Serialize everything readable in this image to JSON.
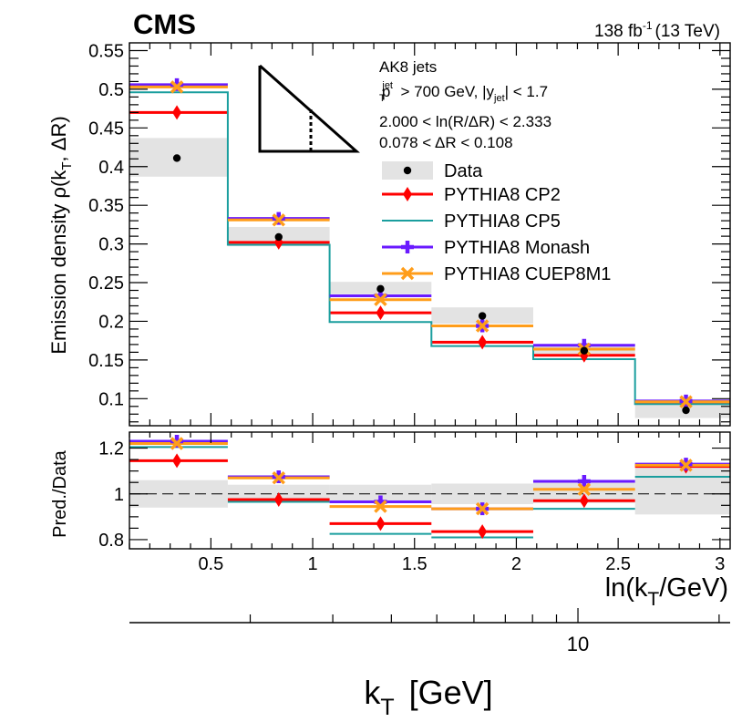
{
  "header": {
    "experiment": "CMS",
    "lumi": "138 fb",
    "lumi_sup": "-1",
    "energy": "(13 TeV)"
  },
  "legend_info": {
    "line1": "AK8 jets",
    "line2": {
      "p": "p",
      "sup": "jet",
      "sub": "T",
      "mid": " > 700 GeV, |y",
      "sub2": "jet",
      "end": "| < 1.7"
    },
    "line3": "2.000 < ln(R/ΔR) < 2.333",
    "line4": "0.078 < ΔR < 0.108"
  },
  "colors": {
    "data": "#000000",
    "cp2": "#ff0000",
    "cp5": "#1a9e9e",
    "monash": "#6a1aff",
    "cuep8m1": "#ff9d1a",
    "band": "#e3e3e3"
  },
  "chart_data": [
    {
      "type": "line",
      "name": "main",
      "ylabel": "Emission density ρ(k_T, ΔR)",
      "ylabel_parts": {
        "main": "Emission density ρ(k",
        "sub": "T",
        "end": ", ΔR)"
      },
      "xlim": [
        0.1,
        3.05
      ],
      "ylim": [
        0.065,
        0.56
      ],
      "yticks": [
        0.1,
        0.15,
        0.2,
        0.25,
        0.3,
        0.35,
        0.4,
        0.45,
        0.5,
        0.55
      ],
      "ytick_labels": [
        "0.1",
        "0.15",
        "0.2",
        "0.25",
        "0.3",
        "0.35",
        "0.4",
        "0.45",
        "0.5",
        "0.55"
      ],
      "bin_edges": [
        0.1,
        0.583,
        1.083,
        1.583,
        2.083,
        2.583,
        3.05
      ],
      "bin_centers": [
        0.333,
        0.833,
        1.333,
        1.833,
        2.333,
        2.833
      ],
      "series": [
        {
          "name": "Data",
          "key": "data",
          "values": [
            0.411,
            0.309,
            0.242,
            0.207,
            0.162,
            0.085
          ],
          "band_low": [
            0.387,
            0.297,
            0.235,
            0.197,
            0.156,
            0.075
          ],
          "band_high": [
            0.437,
            0.322,
            0.251,
            0.218,
            0.17,
            0.095
          ]
        },
        {
          "name": "PYTHIA8 CP2",
          "key": "cp2",
          "values": [
            0.47,
            0.302,
            0.211,
            0.173,
            0.156,
            0.095
          ]
        },
        {
          "name": "PYTHIA8 CP5",
          "key": "cp5",
          "values": [
            0.496,
            0.299,
            0.199,
            0.168,
            0.151,
            0.093
          ]
        },
        {
          "name": "PYTHIA8 Monash",
          "key": "monash",
          "values": [
            0.506,
            0.333,
            0.233,
            0.194,
            0.169,
            0.097
          ]
        },
        {
          "name": "PYTHIA8 CUEP8M1",
          "key": "cuep8m1",
          "values": [
            0.503,
            0.331,
            0.228,
            0.194,
            0.164,
            0.096
          ]
        }
      ]
    },
    {
      "type": "line",
      "name": "ratio",
      "ylabel": "Pred./Data",
      "xlabel": "ln(k_T/GeV)",
      "xlabel_parts": {
        "main": "ln(k",
        "sub": "T",
        "end": "/GeV)"
      },
      "xlim": [
        0.1,
        3.05
      ],
      "ylim": [
        0.76,
        1.27
      ],
      "yticks": [
        0.8,
        1.0,
        1.2
      ],
      "ytick_labels": [
        "0.8",
        "1",
        "1.2"
      ],
      "xticks": [
        0.5,
        1.0,
        1.5,
        2.0,
        2.5,
        3.0
      ],
      "xtick_labels": [
        "0.5",
        "1",
        "1.5",
        "2",
        "2.5",
        "3"
      ],
      "band_low": [
        0.94,
        0.97,
        0.97,
        0.955,
        0.96,
        0.91
      ],
      "band_high": [
        1.06,
        1.04,
        1.04,
        1.045,
        1.05,
        1.12
      ],
      "series": [
        {
          "name": "PYTHIA8 CP2",
          "key": "cp2",
          "values": [
            1.145,
            0.975,
            0.87,
            0.835,
            0.97,
            1.12
          ]
        },
        {
          "name": "PYTHIA8 CP5",
          "key": "cp5",
          "values": [
            1.205,
            0.965,
            0.825,
            0.81,
            0.935,
            1.075
          ]
        },
        {
          "name": "PYTHIA8 Monash",
          "key": "monash",
          "values": [
            1.23,
            1.075,
            0.965,
            0.935,
            1.055,
            1.13
          ]
        },
        {
          "name": "PYTHIA8 CUEP8M1",
          "key": "cuep8m1",
          "values": [
            1.22,
            1.07,
            0.945,
            0.935,
            1.02,
            1.125
          ]
        }
      ]
    },
    {
      "type": "line",
      "name": "kt-axis",
      "xlabel": "k_T [GeV]",
      "xlabel_parts": {
        "main": "k",
        "sub": "T",
        "end": " [GeV]"
      },
      "scale": "log",
      "major_ticks": [
        10
      ],
      "major_tick_labels": [
        "10"
      ],
      "minor_ticks": [
        2,
        3,
        4,
        5,
        6,
        7,
        8,
        9,
        20
      ]
    }
  ]
}
